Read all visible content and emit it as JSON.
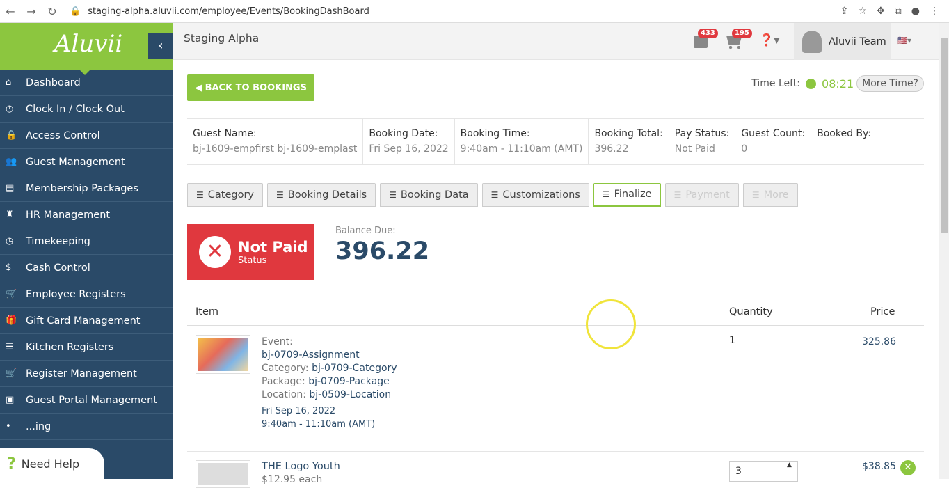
{
  "browser": {
    "url": "staging-alpha.aluvii.com/employee/Events/BookingDashBoard"
  },
  "sidebar": {
    "brand": "Aluvii",
    "items": [
      {
        "label": "Dashboard",
        "icon": "home-icon"
      },
      {
        "label": "Clock In / Clock Out",
        "icon": "clock-icon"
      },
      {
        "label": "Access Control",
        "icon": "lock-icon"
      },
      {
        "label": "Guest Management",
        "icon": "users-icon"
      },
      {
        "label": "Membership Packages",
        "icon": "card-icon"
      },
      {
        "label": "HR Management",
        "icon": "user-tie-icon"
      },
      {
        "label": "Timekeeping",
        "icon": "clock-icon"
      },
      {
        "label": "Cash Control",
        "icon": "dollar-icon"
      },
      {
        "label": "Employee Registers",
        "icon": "cart-icon"
      },
      {
        "label": "Gift Card Management",
        "icon": "gift-icon"
      },
      {
        "label": "Kitchen Registers",
        "icon": "list-icon"
      },
      {
        "label": "Register Management",
        "icon": "cart-icon"
      },
      {
        "label": "Guest Portal Management",
        "icon": "portal-icon"
      },
      {
        "label": "...ing",
        "icon": "item-icon"
      }
    ],
    "need_help": "Need Help"
  },
  "header": {
    "title": "Staging Alpha",
    "bag_badge": "433",
    "cart_badge": "195",
    "user": "Aluvii Team"
  },
  "main": {
    "back_label": "BACK TO BOOKINGS",
    "time_left_label": "Time Left:",
    "time_left": "08:21",
    "more_time": "More Time?",
    "info": [
      {
        "label": "Guest Name:",
        "value": "bj-1609-empfirst bj-1609-emplast"
      },
      {
        "label": "Booking Date:",
        "value": "Fri Sep 16, 2022"
      },
      {
        "label": "Booking Time:",
        "value": "9:40am - 11:10am (AMT)"
      },
      {
        "label": "Booking Total:",
        "value": "396.22"
      },
      {
        "label": "Pay Status:",
        "value": "Not Paid"
      },
      {
        "label": "Guest Count:",
        "value": "0"
      },
      {
        "label": "Booked By:",
        "value": ""
      }
    ],
    "tabs": [
      {
        "label": "Category",
        "state": "normal"
      },
      {
        "label": "Booking Details",
        "state": "normal"
      },
      {
        "label": "Booking Data",
        "state": "normal"
      },
      {
        "label": "Customizations",
        "state": "normal"
      },
      {
        "label": "Finalize",
        "state": "active"
      },
      {
        "label": "Payment",
        "state": "disabled"
      },
      {
        "label": "More",
        "state": "disabled"
      }
    ],
    "status": {
      "title": "Not Paid",
      "sub": "Status"
    },
    "balance": {
      "label": "Balance Due:",
      "value": "396.22"
    },
    "table": {
      "headers": [
        "Item",
        "Quantity",
        "Price"
      ],
      "rows": [
        {
          "event_label": "Event:",
          "event": "bj-0709-Assignment",
          "category_label": "Category:",
          "category": "bj-0709-Category",
          "package_label": "Package:",
          "package": "bj-0709-Package",
          "location_label": "Location:",
          "location": "bj-0509-Location",
          "date": "Fri Sep 16, 2022",
          "time": "9:40am - 11:10am (AMT)",
          "quantity": "1",
          "price": "325.86"
        },
        {
          "name": "THE Logo Youth",
          "each": "$12.95 each",
          "quantity": "3",
          "price": "$38.85"
        }
      ]
    }
  },
  "colors": {
    "accent": "#8cc63f",
    "sidebar": "#2a4a68",
    "danger": "#e0383e"
  }
}
